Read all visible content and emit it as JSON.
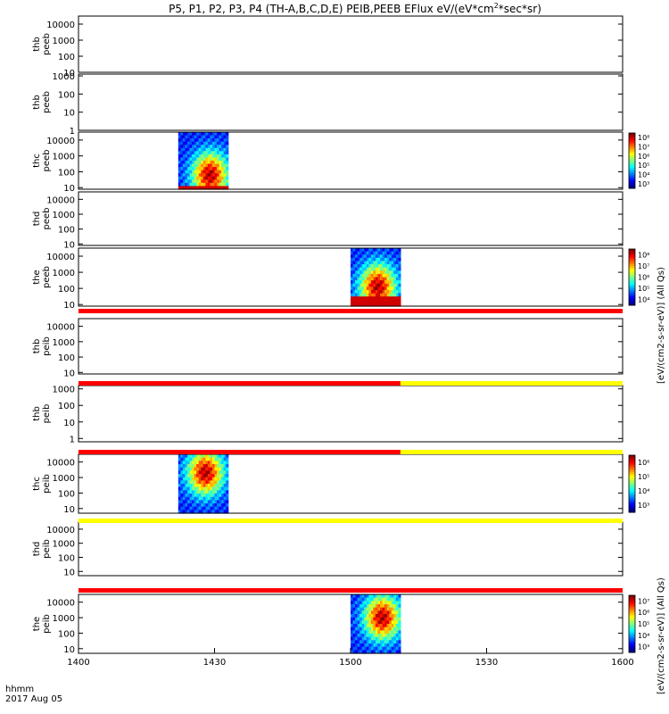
{
  "title": "P5, P1, P2, P3, P4 (TH-A,B,C,D,E) PEIB,PEEB EFlux eV/(eV*cm",
  "title_sup": "2",
  "title_tail": "*sec*sr)",
  "xaxis": {
    "ticks": [
      "1400",
      "1430",
      "1500",
      "1530",
      "1600"
    ],
    "label_line1": "hhmm",
    "label_line2": "2017 Aug 05"
  },
  "colorbar_label_electrons": "[eV/(cm2-s-sr-eV)] (All Qs)",
  "colorbar_label_ions": "[eV/(cm2-s-sr-eV)] (All Qs)",
  "chart_data": {
    "type": "heatmap",
    "x_range": [
      "14:00",
      "16:00"
    ],
    "y_scale": "log",
    "panels": [
      {
        "probe": "thb",
        "product": "peeb",
        "ylabel": "thb\npeeb",
        "yticks": [
          "10",
          "100",
          "1000",
          "10000"
        ],
        "ylog": [
          1,
          4.5
        ],
        "spectrogram": null
      },
      {
        "probe": "thb",
        "product": "peeb",
        "ylabel": "thb\npeeb",
        "yticks": [
          "1",
          "10",
          "100",
          "1000"
        ],
        "ylog": [
          0,
          3.1
        ],
        "spectrogram": null
      },
      {
        "probe": "thc",
        "product": "peeb",
        "ylabel": "thc\npeeb",
        "yticks": [
          "10",
          "100",
          "1000",
          "10000"
        ],
        "ylog": [
          0.9,
          4.5
        ],
        "spectrogram": {
          "x_start": "14:22",
          "x_end": "14:33",
          "peak_time": "14:29",
          "peak_energy_eV": 60
        },
        "colorbar": {
          "ticks": [
            "10³",
            "10⁴",
            "10⁵",
            "10⁶",
            "10⁷",
            "10⁸"
          ]
        }
      },
      {
        "probe": "thd",
        "product": "peeb",
        "ylabel": "thd\npeeb",
        "yticks": [
          "10",
          "100",
          "1000",
          "10000"
        ],
        "ylog": [
          0.9,
          4.5
        ],
        "spectrogram": null
      },
      {
        "probe": "the",
        "product": "peeb",
        "ylabel": "the\npeeb",
        "yticks": [
          "10",
          "100",
          "1000",
          "10000"
        ],
        "ylog": [
          0.9,
          4.5
        ],
        "spectrogram": {
          "x_start": "15:00",
          "x_end": "15:11",
          "peak_time": "15:06",
          "peak_energy_eV": 120
        },
        "colorbar": {
          "ticks": [
            "10⁴",
            "10⁵",
            "10⁶",
            "10⁷",
            "10⁸"
          ]
        }
      },
      {
        "probe": "thb",
        "product": "peib",
        "ylabel": "thb\npeib",
        "yticks": [
          "10",
          "100",
          "1000",
          "10000"
        ],
        "ylog": [
          0.9,
          4.5
        ],
        "spectrogram": null
      },
      {
        "probe": "thb",
        "product": "peib",
        "ylabel": "thb\npeib",
        "yticks": [
          "1",
          "10",
          "100",
          "1000"
        ],
        "ylog": [
          -0.2,
          3.2
        ],
        "spectrogram": null
      },
      {
        "probe": "thc",
        "product": "peib",
        "ylabel": "thc\npeib",
        "yticks": [
          "10",
          "100",
          "1000",
          "10000"
        ],
        "ylog": [
          0.7,
          4.5
        ],
        "spectrogram": {
          "x_start": "14:22",
          "x_end": "14:33",
          "peak_time": "14:28",
          "peak_energy_eV": 2000
        },
        "colorbar": {
          "ticks": [
            "10³",
            "10⁴",
            "10⁵",
            "10⁶"
          ]
        }
      },
      {
        "probe": "thd",
        "product": "peib",
        "ylabel": "thd\npeib",
        "yticks": [
          "10",
          "100",
          "1000",
          "10000"
        ],
        "ylog": [
          0.7,
          4.5
        ],
        "spectrogram": null
      },
      {
        "probe": "the",
        "product": "peib",
        "ylabel": "the\npeib",
        "yticks": [
          "10",
          "100",
          "1000",
          "10000"
        ],
        "ylog": [
          0.7,
          4.5
        ],
        "spectrogram": {
          "x_start": "15:00",
          "x_end": "15:11",
          "peak_time": "15:07",
          "peak_energy_eV": 1000
        },
        "colorbar": {
          "ticks": [
            "10³",
            "10⁴",
            "10⁵",
            "10⁶",
            "10⁷"
          ]
        }
      }
    ],
    "status_bars": [
      {
        "after_panel": 5,
        "segments": [
          {
            "from": "14:00",
            "to": "16:00",
            "color": "#ff0000"
          }
        ]
      },
      {
        "after_panel": 6,
        "segments": [
          {
            "from": "14:00",
            "to": "15:11",
            "color": "#ff0000"
          },
          {
            "from": "15:11",
            "to": "16:00",
            "color": "#ffff00"
          }
        ]
      },
      {
        "after_panel": 7,
        "segments": [
          {
            "from": "14:00",
            "to": "15:11",
            "color": "#ff0000"
          },
          {
            "from": "15:11",
            "to": "16:00",
            "color": "#ffff00"
          }
        ]
      },
      {
        "after_panel": 8,
        "segments": [
          {
            "from": "14:00",
            "to": "16:00",
            "color": "#ffff00"
          }
        ]
      },
      {
        "after_panel": 9,
        "segments": [
          {
            "from": "14:00",
            "to": "16:00",
            "color": "#ff0000"
          }
        ]
      }
    ]
  }
}
